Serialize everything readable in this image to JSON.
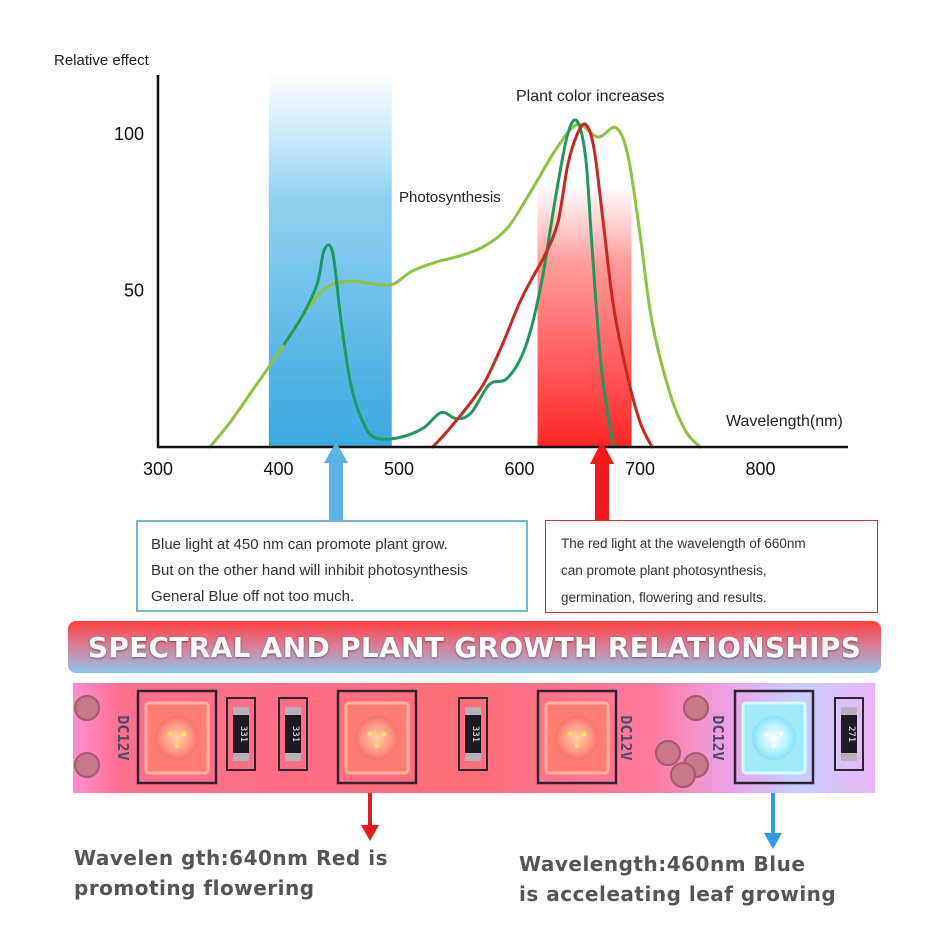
{
  "chart_data": {
    "type": "line",
    "ylabel": "Relative effect",
    "xlabel": "Wavelength(nm)",
    "x_ticks": [
      "300",
      "400",
      "500",
      "600",
      "700",
      "800"
    ],
    "y_ticks": [
      "100",
      "50"
    ],
    "xlim": [
      300,
      850
    ],
    "ylim": [
      0,
      115
    ],
    "grid": false,
    "shaded_bands": [
      {
        "from": 392,
        "to": 494,
        "color": "#47b2e4"
      },
      {
        "from": 615,
        "to": 693,
        "color": "#ff3b3b"
      }
    ],
    "annotations": [
      {
        "text": "Plant color increases",
        "x": 622,
        "y": 112
      },
      {
        "text": "Photosynthesis",
        "x": 560,
        "y": 80
      }
    ],
    "series": [
      {
        "color": "#8cc43f",
        "x": [
          343,
          360,
          380,
          400,
          420,
          440,
          460,
          480,
          495,
          510,
          530,
          550,
          570,
          590,
          610,
          630,
          648,
          665,
          680,
          690,
          700,
          710,
          725,
          738,
          750
        ],
        "y": [
          0,
          8,
          19,
          30,
          42,
          51,
          53,
          52,
          52,
          56,
          59,
          61,
          64,
          70,
          82,
          95,
          103,
          99,
          102,
          93,
          68,
          40,
          17,
          5,
          0
        ]
      },
      {
        "color": "#1e9a5e",
        "x": [
          405,
          420,
          432,
          438,
          445,
          452,
          460,
          470,
          480,
          500,
          520,
          535,
          548,
          560,
          575,
          590,
          605,
          618,
          630,
          640,
          648,
          655,
          660,
          668,
          678
        ],
        "y": [
          33,
          42,
          52,
          63,
          62,
          40,
          20,
          8,
          3,
          3,
          6,
          11,
          9,
          11,
          20,
          22,
          32,
          52,
          80,
          100,
          104,
          92,
          65,
          25,
          0
        ]
      },
      {
        "color": "#c8281f",
        "x": [
          528,
          540,
          555,
          570,
          585,
          600,
          612,
          622,
          632,
          640,
          648,
          655,
          662,
          670,
          678,
          690,
          700,
          710
        ],
        "y": [
          0,
          5,
          12,
          20,
          32,
          46,
          55,
          62,
          72,
          90,
          100,
          103,
          95,
          70,
          45,
          22,
          8,
          0
        ]
      }
    ]
  },
  "notes": {
    "blue": {
      "lines": [
        "Blue light at 450 nm can promote plant grow.",
        "But on the other hand will inhibit photosynthesis",
        "General Blue off not too much."
      ],
      "border_color": "#6fb4dc",
      "arrow_color": "#5ab4e6"
    },
    "red": {
      "lines": [
        "The red light at the wavelength of 660nm",
        "can promote plant photosynthesis,",
        "germination, flowering and results."
      ],
      "border_color": "#d9302c",
      "arrow_color": "#f01818"
    }
  },
  "banner": {
    "title": "SPECTRAL AND PLANT GROWTH RELATIONSHIPS"
  },
  "led_strip": {
    "voltage_label": "DC12V",
    "resistor_labels": [
      "331",
      "331",
      "331",
      "271"
    ],
    "led_colors": [
      "red",
      "red",
      "red",
      "blue"
    ]
  },
  "captions": {
    "red": {
      "lines": [
        "Wavelen gth:640nm Red is",
        "promoting flowering"
      ],
      "arrow_color": "#e51a1a"
    },
    "blue": {
      "lines": [
        "Wavelength:460nm Blue",
        "is acceleating leaf growing"
      ],
      "arrow_color": "#2f9be0"
    }
  }
}
